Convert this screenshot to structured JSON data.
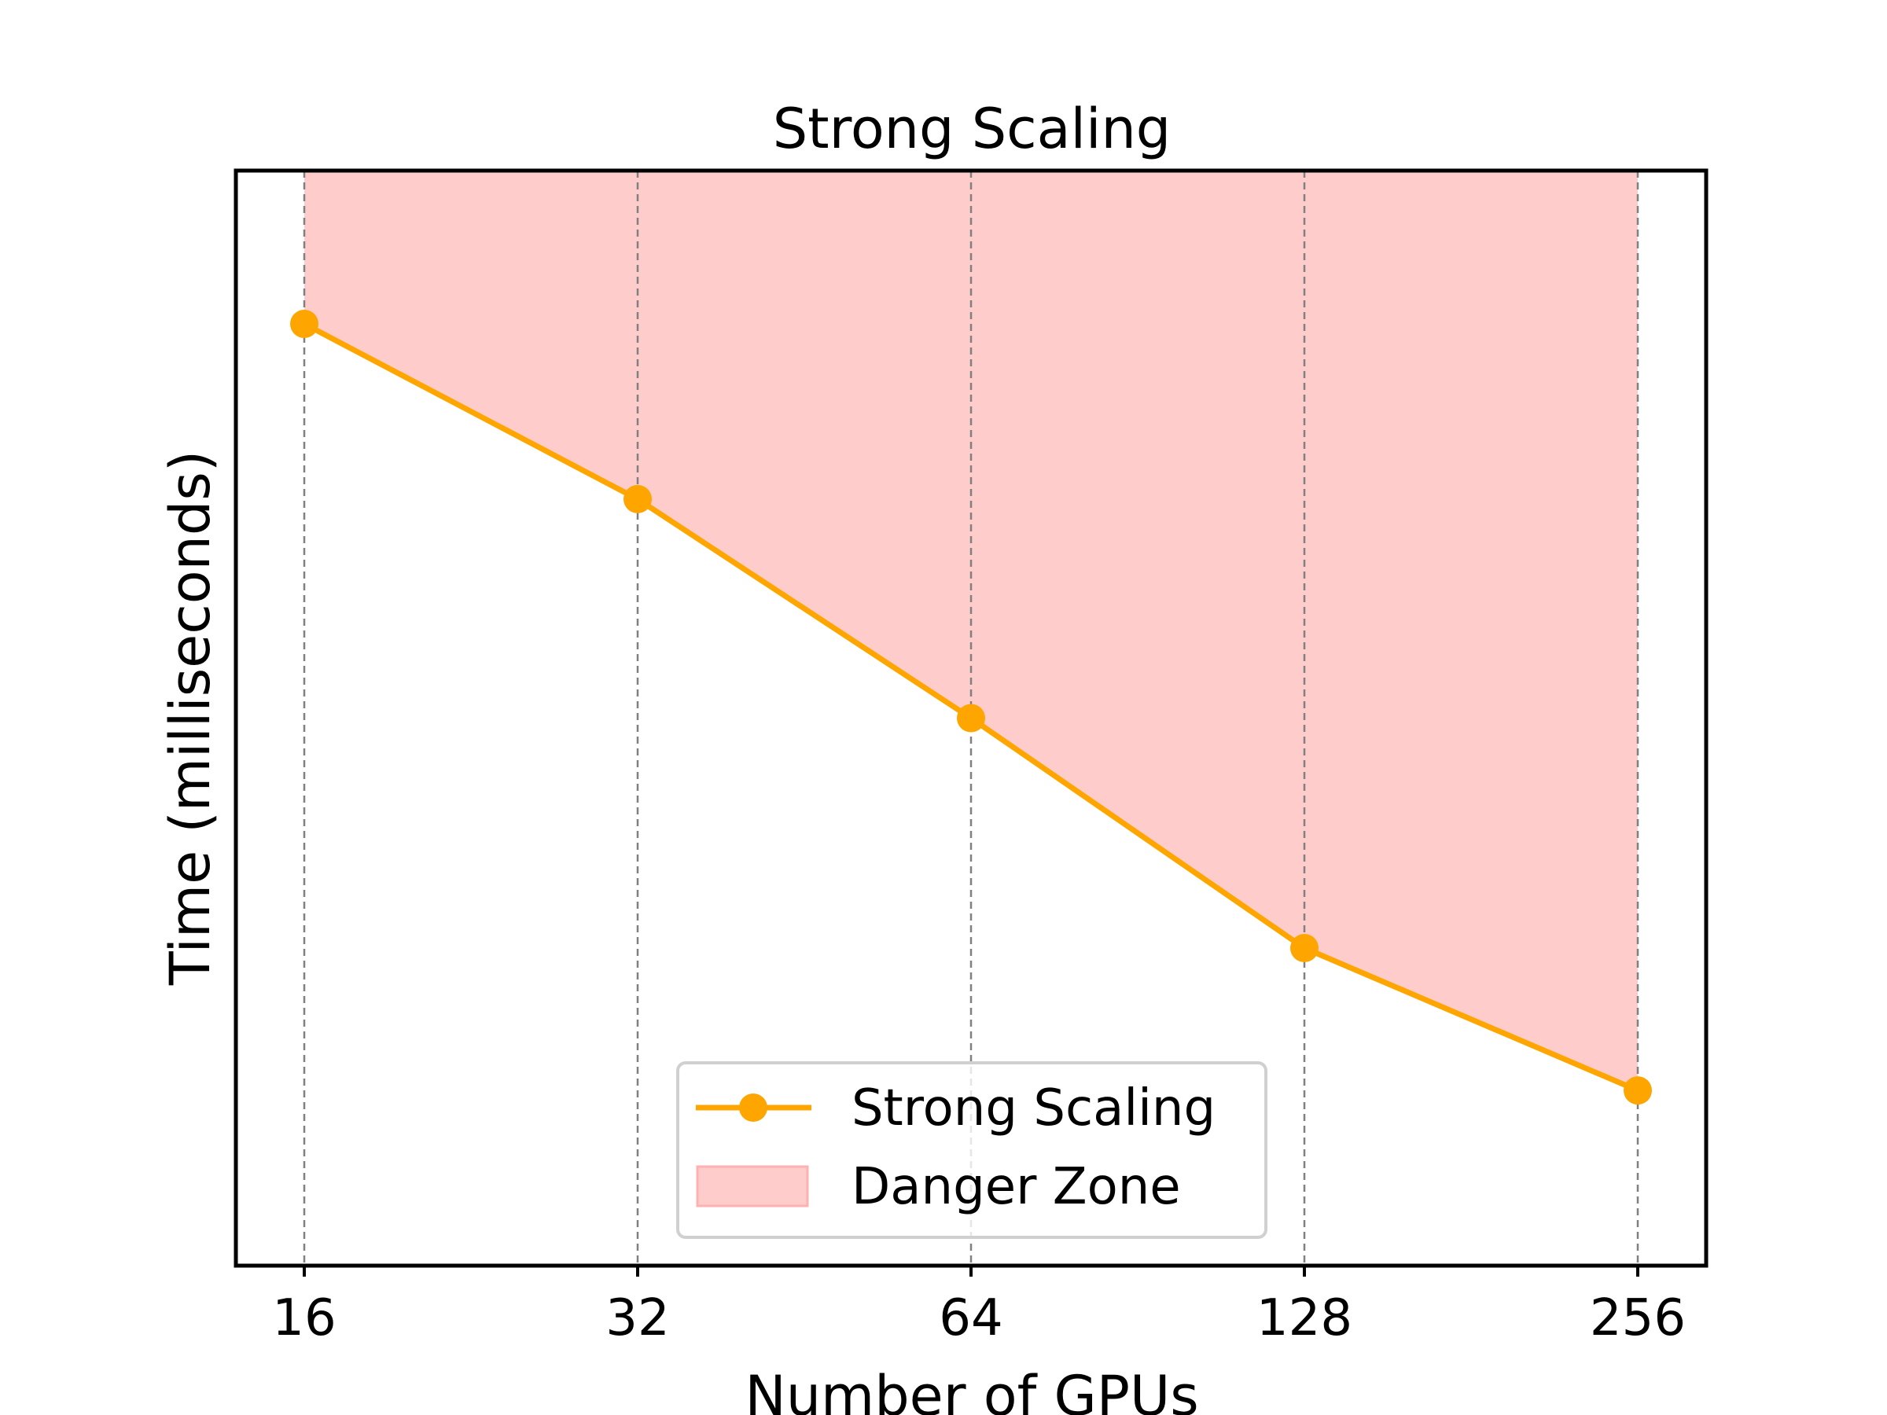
{
  "chart_data": {
    "type": "line",
    "title": "Strong Scaling",
    "xlabel": "Number of GPUs",
    "ylabel": "Time (milliseconds)",
    "x_scale": "log2",
    "x": [
      16,
      32,
      64,
      128,
      256
    ],
    "x_tick_labels": [
      "16",
      "32",
      "64",
      "128",
      "256"
    ],
    "y_tick_labels_visible": false,
    "ylim": [
      0,
      1
    ],
    "grid": "vertical-dashed",
    "legend_placement": "lower-center",
    "series": [
      {
        "name": "Strong Scaling",
        "type": "line",
        "color": "#FFA500",
        "marker": "circle",
        "values": [
          0.86,
          0.7,
          0.5,
          0.29,
          0.16
        ]
      }
    ],
    "fill": {
      "name": "Danger Zone",
      "color": "#FFCCCC",
      "between": [
        "Strong Scaling",
        "top"
      ]
    },
    "legend": [
      "Strong Scaling",
      "Danger Zone"
    ]
  }
}
